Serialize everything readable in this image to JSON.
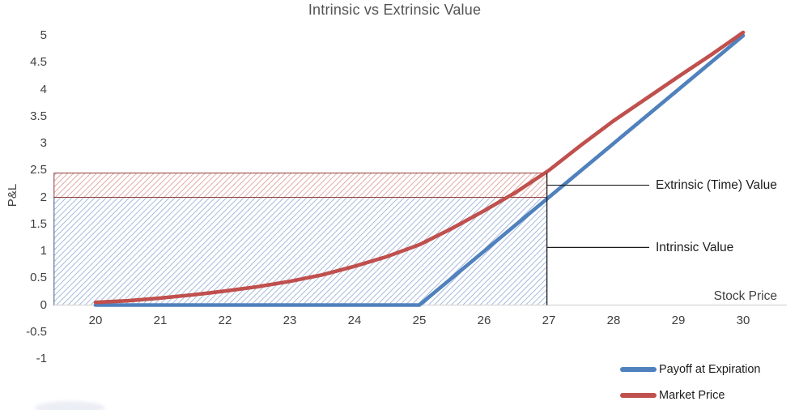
{
  "title": "Intrinsic vs Extrinsic Value",
  "axes": {
    "y_label": "P&L",
    "x_label": "Stock Price"
  },
  "annotations": [
    {
      "key": "extrinsic",
      "label": "Extrinsic (Time) Value",
      "y": 2.225,
      "x_from": 26.97,
      "x_to": 28.55
    },
    {
      "key": "intrinsic",
      "label": "Intrinsic Value",
      "y": 1.07,
      "x_from": 26.97,
      "x_to": 28.55
    }
  ],
  "legend": [
    {
      "label": "Payoff at Expiration",
      "color": "#4F81BD"
    },
    {
      "label": "Market Price",
      "color": "#C0504D"
    }
  ],
  "chart_data": {
    "type": "line",
    "title": "Intrinsic vs Extrinsic Value",
    "xlabel": "Stock Price",
    "ylabel": "P&L",
    "xlim": [
      19.36,
      30.65
    ],
    "ylim": [
      -1,
      5
    ],
    "x_ticks": [
      20,
      21,
      22,
      23,
      24,
      25,
      26,
      27,
      28,
      29,
      30
    ],
    "y_ticks": [
      5,
      4.5,
      4,
      3.5,
      3,
      2.5,
      2,
      1.5,
      1,
      0.5,
      0,
      -0.5,
      -1
    ],
    "grid": false,
    "legend_position": "bottom-right",
    "series": [
      {
        "name": "Payoff at Expiration",
        "key": "payoff-at-expiration-line",
        "color": "#4F81BD",
        "width": 4.6,
        "points": [
          [
            20,
            0
          ],
          [
            25,
            0
          ],
          [
            30,
            5
          ]
        ]
      },
      {
        "name": "Market Price",
        "key": "market-price-line",
        "color": "#C0504D",
        "width": 4.6,
        "points": [
          [
            20,
            0.05
          ],
          [
            20.5,
            0.08
          ],
          [
            21,
            0.13
          ],
          [
            21.5,
            0.19
          ],
          [
            22,
            0.26
          ],
          [
            22.5,
            0.34
          ],
          [
            23,
            0.44
          ],
          [
            23.5,
            0.56
          ],
          [
            24,
            0.72
          ],
          [
            24.5,
            0.9
          ],
          [
            25,
            1.12
          ],
          [
            25.5,
            1.42
          ],
          [
            26,
            1.75
          ],
          [
            26.5,
            2.1
          ],
          [
            27,
            2.5
          ],
          [
            27.5,
            2.97
          ],
          [
            28,
            3.42
          ],
          [
            28.5,
            3.83
          ],
          [
            29,
            4.24
          ],
          [
            29.5,
            4.64
          ],
          [
            30,
            5.06
          ]
        ]
      }
    ],
    "regions": [
      {
        "name": "Intrinsic Value",
        "key": "intrinsic-region",
        "x_from": 19.36,
        "x_to": 26.97,
        "y_from": 0,
        "y_to": 2,
        "hatch_color": "#8fa9d4",
        "border_color": "#3f5a85"
      },
      {
        "name": "Extrinsic (Time) Value",
        "key": "extrinsic-region",
        "x_from": 19.36,
        "x_to": 26.97,
        "y_from": 2,
        "y_to": 2.45,
        "hatch_color": "#d99693",
        "border_color": "#8e3b39"
      }
    ],
    "marker_line_x": 26.97
  }
}
